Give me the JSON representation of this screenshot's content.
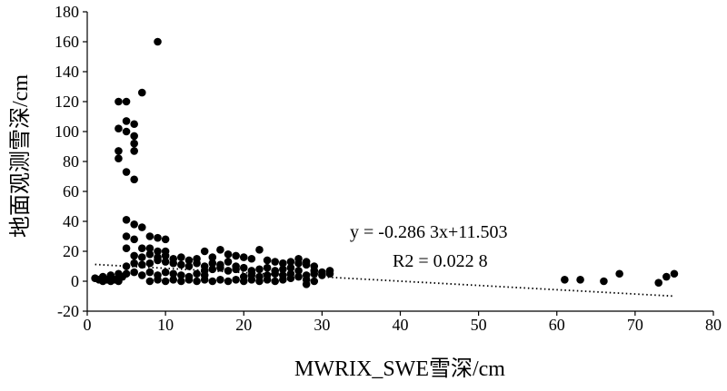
{
  "chart_data": {
    "type": "scatter",
    "xlabel": "MWRIX_SWE雪深/cm",
    "ylabel": "地面观测雪深/cm",
    "xlim": [
      0,
      80
    ],
    "ylim": [
      -20,
      180
    ],
    "xticks": [
      "0",
      "10",
      "20",
      "30",
      "40",
      "50",
      "60",
      "70",
      "80"
    ],
    "yticks": [
      "-20",
      "0",
      "20",
      "40",
      "60",
      "80",
      "100",
      "120",
      "140",
      "160",
      "180"
    ],
    "grid": false,
    "legend": "none",
    "colors": {
      "points": "#000000",
      "trendline": "#000000",
      "axis": "#000000"
    },
    "trendline": {
      "style": "dotted",
      "equation": "y = -0.286 3x+11.503",
      "r2": "R2 = 0.022 8",
      "slope": -0.2863,
      "intercept": 11.503
    },
    "points": [
      [
        1,
        2
      ],
      [
        1.5,
        1
      ],
      [
        2,
        0
      ],
      [
        2,
        3
      ],
      [
        2.5,
        1
      ],
      [
        3,
        0
      ],
      [
        3,
        2
      ],
      [
        3,
        4
      ],
      [
        3.5,
        1
      ],
      [
        4,
        0
      ],
      [
        4,
        2
      ],
      [
        4,
        5
      ],
      [
        4.5,
        3
      ],
      [
        4,
        120
      ],
      [
        5,
        120
      ],
      [
        4,
        102
      ],
      [
        5,
        107
      ],
      [
        6,
        105
      ],
      [
        5,
        100
      ],
      [
        4,
        87
      ],
      [
        4,
        82
      ],
      [
        6,
        97
      ],
      [
        6,
        92
      ],
      [
        6,
        87
      ],
      [
        5,
        73
      ],
      [
        6,
        68
      ],
      [
        7,
        126
      ],
      [
        9,
        160
      ],
      [
        5,
        41
      ],
      [
        6,
        38
      ],
      [
        7,
        36
      ],
      [
        5,
        30
      ],
      [
        6,
        28
      ],
      [
        7,
        22
      ],
      [
        5,
        22
      ],
      [
        8,
        30
      ],
      [
        9,
        29
      ],
      [
        10,
        28
      ],
      [
        8,
        22
      ],
      [
        9,
        20
      ],
      [
        10,
        20
      ],
      [
        5,
        10
      ],
      [
        6,
        12
      ],
      [
        7,
        11
      ],
      [
        5,
        5
      ],
      [
        6,
        6
      ],
      [
        7,
        4
      ],
      [
        8,
        6
      ],
      [
        9,
        4
      ],
      [
        10,
        6
      ],
      [
        11,
        5
      ],
      [
        12,
        4
      ],
      [
        13,
        3
      ],
      [
        14,
        5
      ],
      [
        15,
        4
      ],
      [
        8,
        12
      ],
      [
        9,
        14
      ],
      [
        10,
        13
      ],
      [
        11,
        12
      ],
      [
        12,
        11
      ],
      [
        13,
        10
      ],
      [
        14,
        12
      ],
      [
        15,
        10
      ],
      [
        16,
        12
      ],
      [
        17,
        11
      ],
      [
        18,
        13
      ],
      [
        19,
        10
      ],
      [
        8,
        0
      ],
      [
        9,
        1
      ],
      [
        10,
        0
      ],
      [
        11,
        1
      ],
      [
        12,
        0
      ],
      [
        13,
        1
      ],
      [
        14,
        0
      ],
      [
        15,
        1
      ],
      [
        16,
        0
      ],
      [
        17,
        1
      ],
      [
        18,
        0
      ],
      [
        19,
        1
      ],
      [
        20,
        0
      ],
      [
        21,
        1
      ],
      [
        22,
        0
      ],
      [
        23,
        1
      ],
      [
        24,
        0
      ],
      [
        25,
        1
      ],
      [
        26,
        2
      ],
      [
        27,
        3
      ],
      [
        28,
        4
      ],
      [
        6,
        17
      ],
      [
        7,
        16
      ],
      [
        8,
        18
      ],
      [
        9,
        16
      ],
      [
        10,
        17
      ],
      [
        11,
        15
      ],
      [
        12,
        16
      ],
      [
        13,
        14
      ],
      [
        14,
        15
      ],
      [
        15,
        20
      ],
      [
        16,
        16
      ],
      [
        17,
        21
      ],
      [
        18,
        18
      ],
      [
        19,
        17
      ],
      [
        20,
        16
      ],
      [
        21,
        15
      ],
      [
        22,
        21
      ],
      [
        23,
        14
      ],
      [
        24,
        13
      ],
      [
        15,
        7
      ],
      [
        16,
        8
      ],
      [
        17,
        9
      ],
      [
        18,
        7
      ],
      [
        19,
        8
      ],
      [
        20,
        9
      ],
      [
        21,
        7
      ],
      [
        22,
        8
      ],
      [
        23,
        9
      ],
      [
        24,
        7
      ],
      [
        25,
        8
      ],
      [
        26,
        9
      ],
      [
        27,
        7
      ],
      [
        25,
        12
      ],
      [
        26,
        13
      ],
      [
        27,
        12
      ],
      [
        28,
        11
      ],
      [
        29,
        10
      ],
      [
        28,
        13
      ],
      [
        27,
        15
      ],
      [
        20,
        3
      ],
      [
        21,
        4
      ],
      [
        22,
        3
      ],
      [
        23,
        4
      ],
      [
        24,
        5
      ],
      [
        25,
        4
      ],
      [
        26,
        5
      ],
      [
        28,
        1
      ],
      [
        29,
        0
      ],
      [
        28,
        -2
      ],
      [
        29,
        5
      ],
      [
        30,
        6
      ],
      [
        31,
        7
      ],
      [
        29,
        7
      ],
      [
        30,
        4
      ],
      [
        31,
        5
      ],
      [
        61,
        1
      ],
      [
        63,
        1
      ],
      [
        66,
        0
      ],
      [
        68,
        5
      ],
      [
        73,
        -1
      ],
      [
        74,
        3
      ],
      [
        75,
        5
      ]
    ]
  }
}
